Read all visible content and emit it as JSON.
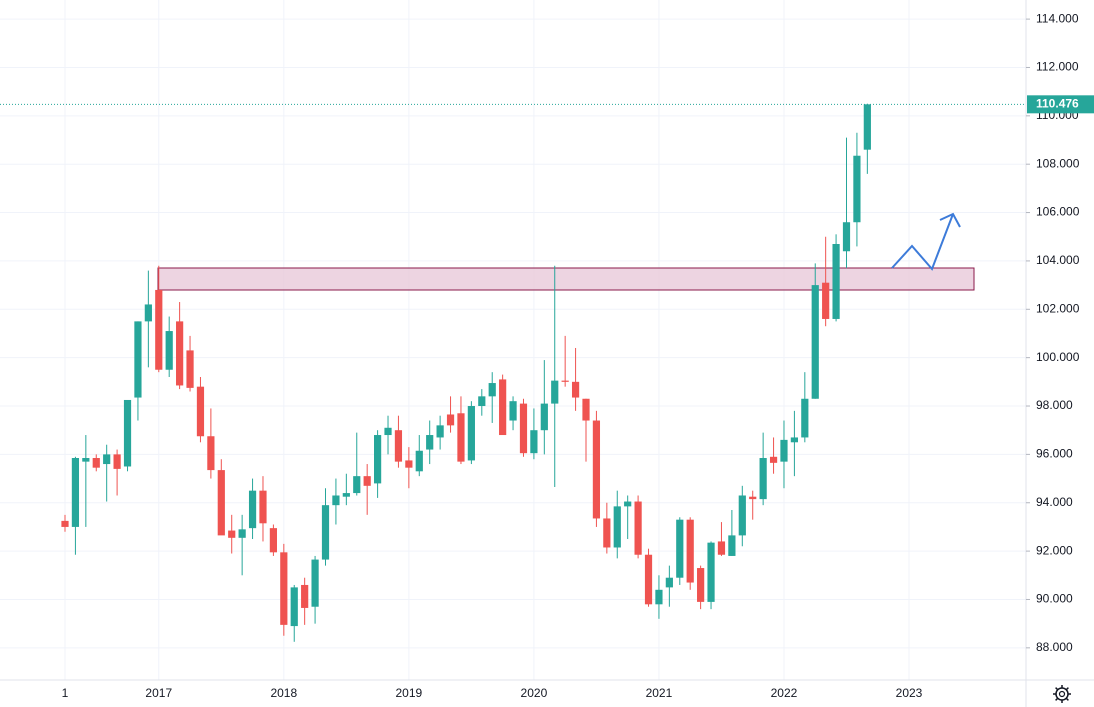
{
  "chart_data": {
    "type": "candlestick",
    "categories": [
      "1",
      null,
      null,
      null,
      null,
      null,
      null,
      null,
      null,
      "2017",
      null,
      null,
      null,
      null,
      null,
      null,
      null,
      null,
      null,
      null,
      null,
      "2018",
      null,
      null,
      null,
      null,
      null,
      null,
      null,
      null,
      null,
      null,
      null,
      "2019",
      null,
      null,
      null,
      null,
      null,
      null,
      null,
      null,
      null,
      null,
      null,
      "2020",
      null,
      null,
      null,
      null,
      null,
      null,
      null,
      null,
      null,
      null,
      null,
      "2021",
      null,
      null,
      null,
      null,
      null,
      null,
      null,
      null,
      null,
      null,
      null,
      "2022",
      null,
      null,
      null,
      null,
      null,
      null,
      null,
      null,
      null,
      null,
      null,
      "2023",
      null,
      null,
      null,
      null,
      null,
      null,
      null,
      null
    ],
    "open": [
      93.25,
      93.0,
      95.7,
      95.85,
      95.6,
      96.0,
      95.5,
      98.35,
      101.5,
      102.8,
      99.5,
      101.5,
      100.3,
      98.8,
      96.75,
      95.35,
      92.85,
      92.55,
      92.95,
      94.5,
      92.95,
      91.95,
      88.9,
      90.6,
      89.7,
      91.65,
      93.9,
      94.25,
      94.4,
      95.1,
      94.8,
      96.8,
      97.0,
      95.75,
      95.3,
      96.2,
      96.7,
      97.65,
      97.7,
      95.75,
      98.0,
      98.4,
      99.1,
      97.4,
      98.1,
      96.05,
      97.0,
      98.1,
      99.05,
      99.0,
      98.3,
      97.4,
      93.35,
      92.15,
      93.85,
      94.05,
      91.85,
      89.8,
      90.5,
      90.9,
      93.3,
      91.3,
      89.9,
      92.4,
      91.8,
      92.65,
      94.25,
      94.15,
      95.9,
      95.7,
      96.5,
      96.7,
      98.3,
      103.1,
      101.6,
      104.4,
      105.6,
      108.6,
      null,
      null,
      null,
      null,
      null,
      null,
      null,
      null,
      null,
      null,
      null,
      null
    ],
    "high": [
      93.5,
      95.9,
      96.8,
      96.0,
      96.4,
      96.2,
      98.2,
      101.5,
      103.6,
      103.8,
      101.7,
      102.3,
      100.9,
      99.2,
      97.9,
      95.8,
      93.5,
      93.5,
      95.0,
      95.1,
      93.1,
      92.3,
      90.6,
      90.9,
      91.8,
      94.6,
      95.0,
      95.2,
      96.9,
      95.6,
      97.0,
      97.6,
      97.6,
      96.3,
      96.8,
      97.4,
      97.6,
      98.4,
      98.4,
      98.2,
      98.7,
      99.4,
      99.3,
      98.4,
      98.3,
      97.9,
      99.9,
      103.8,
      100.9,
      100.4,
      98.3,
      97.8,
      94.0,
      94.5,
      94.3,
      94.3,
      92.1,
      91.0,
      91.4,
      93.4,
      93.4,
      91.4,
      92.4,
      93.2,
      93.7,
      94.7,
      94.5,
      96.9,
      96.7,
      97.4,
      97.8,
      99.4,
      103.9,
      105.0,
      105.1,
      109.1,
      109.3,
      110.5,
      null,
      null,
      null,
      null,
      null,
      null,
      null,
      null,
      null,
      null,
      null,
      null
    ],
    "low": [
      92.8,
      91.85,
      93.0,
      95.3,
      94.05,
      94.3,
      95.3,
      97.4,
      99.6,
      99.4,
      99.2,
      98.7,
      98.6,
      96.5,
      95.0,
      92.7,
      91.9,
      91.0,
      92.5,
      92.4,
      91.8,
      88.5,
      88.25,
      88.95,
      89.0,
      91.4,
      93.1,
      93.9,
      94.3,
      93.5,
      94.2,
      96.0,
      95.45,
      94.6,
      95.1,
      95.6,
      96.2,
      96.9,
      95.6,
      95.6,
      97.6,
      97.3,
      96.9,
      97.0,
      95.9,
      95.8,
      96.0,
      94.65,
      98.8,
      97.8,
      95.7,
      93.0,
      91.9,
      91.7,
      92.5,
      91.7,
      89.7,
      89.2,
      89.7,
      90.6,
      90.4,
      89.6,
      89.6,
      91.8,
      91.8,
      92.2,
      93.3,
      93.9,
      95.2,
      94.6,
      95.1,
      96.5,
      98.3,
      101.3,
      101.5,
      103.7,
      104.6,
      107.6,
      null,
      null,
      null,
      null,
      null,
      null,
      null,
      null,
      null,
      null,
      null,
      null
    ],
    "close": [
      93.0,
      95.85,
      95.85,
      95.45,
      96.0,
      95.4,
      98.25,
      101.5,
      102.2,
      99.5,
      101.1,
      98.85,
      98.75,
      96.75,
      95.35,
      92.65,
      92.55,
      92.9,
      94.5,
      93.15,
      91.95,
      88.95,
      90.5,
      89.65,
      91.65,
      93.9,
      94.3,
      94.4,
      95.1,
      94.7,
      96.8,
      97.1,
      95.7,
      95.45,
      96.15,
      96.8,
      97.2,
      97.2,
      95.7,
      98.0,
      98.4,
      98.95,
      96.8,
      98.2,
      96.05,
      97.0,
      98.1,
      99.05,
      99.0,
      98.35,
      97.4,
      93.35,
      92.15,
      93.85,
      94.05,
      91.85,
      89.8,
      90.4,
      90.9,
      93.3,
      90.7,
      89.9,
      92.35,
      91.85,
      92.65,
      94.3,
      94.15,
      95.85,
      95.65,
      96.6,
      96.7,
      98.3,
      103.0,
      101.6,
      104.7,
      105.6,
      108.35,
      110.476,
      null,
      null,
      null,
      null,
      null,
      null,
      null,
      null,
      null,
      null,
      null,
      null
    ],
    "up_color": "#26a69a",
    "down_color": "#ef5350",
    "last_price": 110.476,
    "ylim": [
      86.67,
      114.79
    ],
    "yticks": [
      {
        "value": 88,
        "label": "88.000"
      },
      {
        "value": 90,
        "label": "90.000"
      },
      {
        "value": 92,
        "label": "92.000"
      },
      {
        "value": 94,
        "label": "94.000"
      },
      {
        "value": 96,
        "label": "96.000"
      },
      {
        "value": 98,
        "label": "98.000"
      },
      {
        "value": 100,
        "label": "100.000"
      },
      {
        "value": 102,
        "label": "102.000"
      },
      {
        "value": 104,
        "label": "104.000"
      },
      {
        "value": 106,
        "label": "106.000"
      },
      {
        "value": 108,
        "label": "108.000"
      },
      {
        "value": 110,
        "label": "110.000"
      },
      {
        "value": 112,
        "label": "112.000"
      },
      {
        "value": 114,
        "label": "114.000"
      }
    ],
    "grid": true
  }
}
